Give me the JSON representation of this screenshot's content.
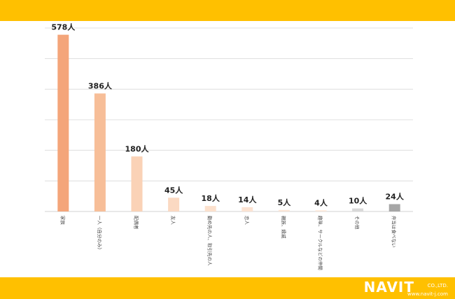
{
  "chart_data": {
    "type": "bar",
    "categories": [
      "家族",
      "一人（自分のみ）",
      "配偶者",
      "友人",
      "勤め先の人、取引先の人",
      "恋人",
      "親族、縁戚",
      "趣味、サークルなどの仲間",
      "その他",
      "弁当は食べない"
    ],
    "values": [
      578,
      386,
      180,
      45,
      18,
      14,
      5,
      4,
      10,
      24
    ],
    "value_labels": [
      "578人",
      "386人",
      "180人",
      "45人",
      "18人",
      "14人",
      "5人",
      "4人",
      "10人",
      "24人"
    ],
    "colors": [
      "#F4A57A",
      "#F7BE98",
      "#FAD2B6",
      "#FBD9C2",
      "#FCE0CC",
      "#FCE3D2",
      "#FCE6D6",
      "#FCE8D9",
      "#D9D9D9",
      "#A6A6A6"
    ],
    "ylim": [
      0,
      600
    ],
    "grid": true,
    "title": "",
    "xlabel": "",
    "ylabel": ""
  },
  "footer": {
    "logo_text": "NAVIT",
    "company_suffix": "CO.,LTD.",
    "url": "www.navit-j.com"
  },
  "theme": {
    "band_color": "#FFC000",
    "grid_color": "#D9D9D9",
    "text_color": "#222222"
  }
}
